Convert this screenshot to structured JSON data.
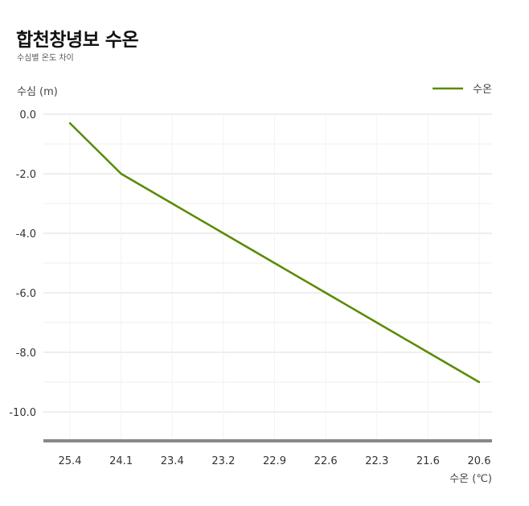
{
  "chart_data": {
    "type": "line",
    "title": "합천창녕보 수온",
    "subtitle": "수심별 온도 차이",
    "xlabel": "수온 (℃)",
    "ylabel": "수심 (m)",
    "categories": [
      "25.4",
      "24.1",
      "23.4",
      "23.2",
      "22.9",
      "22.6",
      "22.3",
      "21.6",
      "20.6"
    ],
    "series": [
      {
        "name": "수온",
        "color": "#5a8a00",
        "values": [
          -0.3,
          -2.0,
          -3.0,
          -4.0,
          -5.0,
          -6.0,
          -7.0,
          -8.0,
          -9.0
        ]
      }
    ],
    "ylim": [
      -11,
      0
    ],
    "yticks": [
      "0.0",
      "-2.0",
      "-4.0",
      "-6.0",
      "-8.0",
      "-10.0"
    ],
    "grid": true,
    "legend": "top-right"
  }
}
